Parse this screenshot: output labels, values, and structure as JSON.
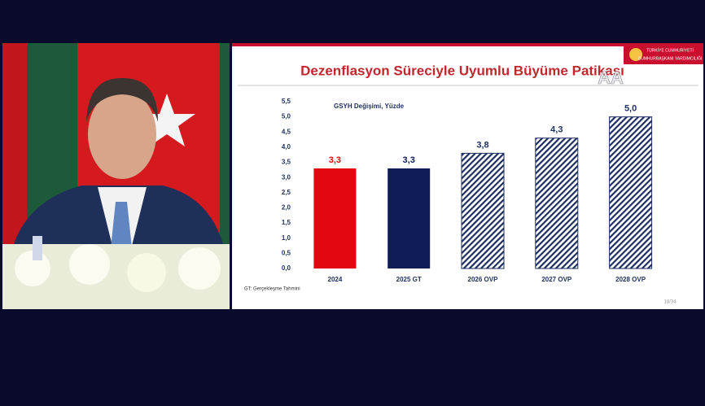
{
  "chart_data": {
    "type": "bar",
    "title": "Dezenflasyon Süreciyle Uyumlu Büyüme Patikası",
    "subtitle": "GSYH Değişimi, Yüzde",
    "footnote": "GT: Gerçekleşme Tahmini",
    "page_number": "18/34",
    "logo_text": [
      "TÜRKİYE CUMHURİYETİ",
      "CUMHURBAŞKANI YARDIMCILIĞI"
    ],
    "categories": [
      "2024",
      "2025 GT",
      "2026 OVP",
      "2027 OVP",
      "2028 OVP"
    ],
    "values": [
      3.3,
      3.3,
      3.8,
      4.3,
      5.0
    ],
    "value_labels": [
      "3,3",
      "3,3",
      "3,8",
      "4,3",
      "5,0"
    ],
    "colors": [
      "#e30613",
      "#0f1c55",
      "#1f2f5e",
      "#1f2f5e",
      "#1f2f5e"
    ],
    "hatched": [
      false,
      false,
      true,
      true,
      true
    ],
    "ylim": [
      0,
      5.5
    ],
    "yticks": [
      {
        "value": 0,
        "label": "0,0"
      },
      {
        "value": 0.5,
        "label": "0,5"
      },
      {
        "value": 1,
        "label": "1,0"
      },
      {
        "value": 1.5,
        "label": "1,5"
      },
      {
        "value": 2,
        "label": "2,0"
      },
      {
        "value": 2.5,
        "label": "2,5"
      },
      {
        "value": 3,
        "label": "3,0"
      },
      {
        "value": 3.5,
        "label": "3,5"
      },
      {
        "value": 4,
        "label": "4,0"
      },
      {
        "value": 4.5,
        "label": "4,5"
      },
      {
        "value": 5,
        "label": "5,0"
      },
      {
        "value": 5.5,
        "label": "5,5"
      }
    ],
    "grid": false
  }
}
